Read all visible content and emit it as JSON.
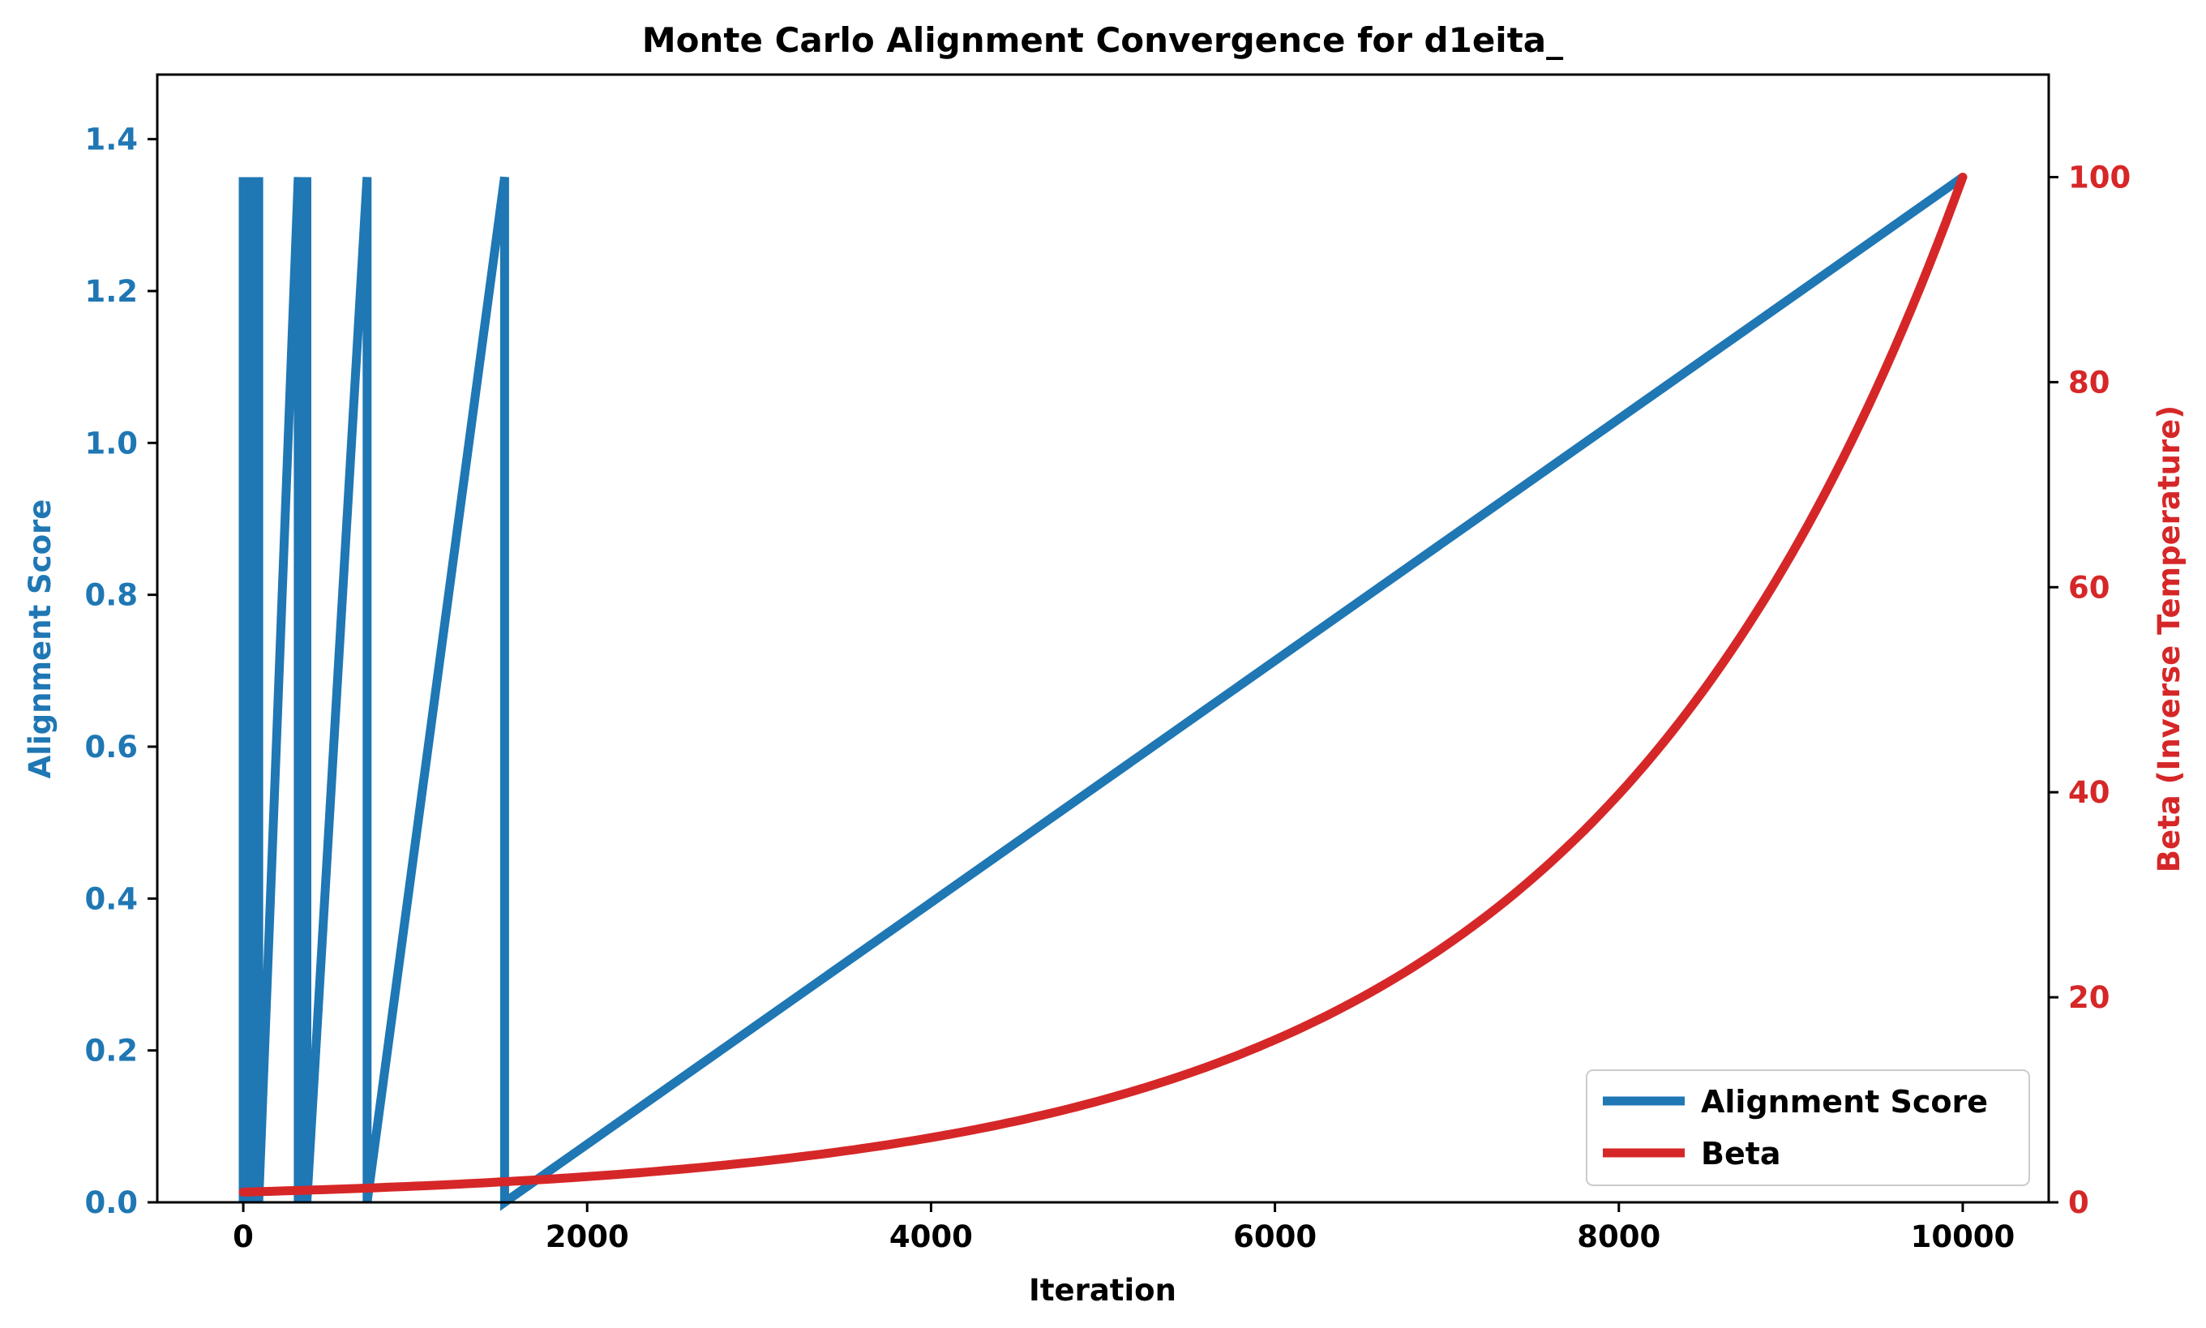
{
  "chart_data": {
    "type": "line",
    "title": "Monte Carlo Alignment Convergence for d1eita_",
    "xlabel": "Iteration",
    "ylabel_left": "Alignment Score",
    "ylabel_right": "Beta (Inverse Temperature)",
    "xlim": [
      -500,
      10500
    ],
    "ylim_left": [
      0,
      1.485
    ],
    "ylim_right": [
      0,
      110
    ],
    "x_ticks": [
      0,
      2000,
      4000,
      6000,
      8000,
      10000
    ],
    "x_tick_labels": [
      "0",
      "2000",
      "4000",
      "6000",
      "8000",
      "10000"
    ],
    "y_left_ticks": [
      0.0,
      0.2,
      0.4,
      0.6,
      0.8,
      1.0,
      1.2,
      1.4
    ],
    "y_left_tick_labels": [
      "0.0",
      "0.2",
      "0.4",
      "0.6",
      "0.8",
      "1.0",
      "1.2",
      "1.4"
    ],
    "y_right_ticks": [
      0,
      20,
      40,
      60,
      80,
      100
    ],
    "y_right_tick_labels": [
      "0",
      "20",
      "40",
      "60",
      "80",
      "100"
    ],
    "grid": false,
    "legend_position": "lower-right",
    "series": [
      {
        "name": "Alignment Score",
        "axis": "left",
        "color": "#1f77b4",
        "x": [
          0,
          0,
          10,
          10,
          20,
          20,
          30,
          30,
          40,
          40,
          55,
          55,
          70,
          70,
          90,
          90,
          320,
          320,
          345,
          345,
          370,
          370,
          720,
          720,
          1520,
          1520,
          10000
        ],
        "values": [
          1.35,
          0.0,
          1.35,
          0.0,
          1.35,
          0.0,
          1.35,
          0.0,
          1.35,
          0.0,
          1.35,
          0.0,
          1.35,
          0.0,
          1.35,
          0.0,
          1.35,
          0.0,
          1.35,
          0.0,
          1.35,
          0.0,
          1.35,
          0.0,
          1.35,
          0.0,
          1.35
        ]
      },
      {
        "name": "Beta",
        "axis": "right",
        "color": "#d62728",
        "x": [
          0,
          1000,
          2000,
          3000,
          4000,
          5000,
          6000,
          7000,
          8000,
          9000,
          10000
        ],
        "values": [
          1.0,
          1.58,
          2.51,
          3.98,
          6.31,
          10.0,
          15.85,
          25.12,
          39.81,
          63.1,
          100.0
        ]
      }
    ]
  }
}
